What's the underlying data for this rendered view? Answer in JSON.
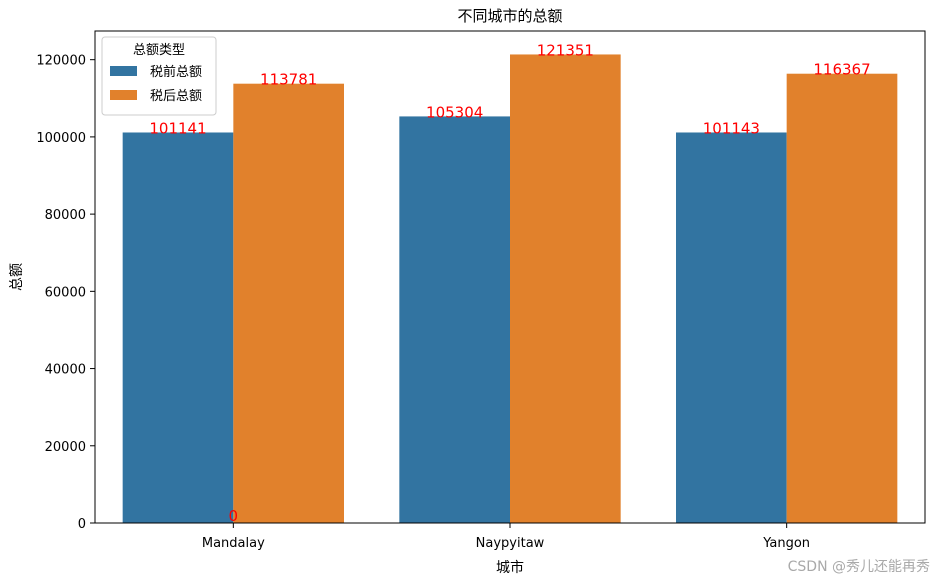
{
  "chart_data": {
    "type": "bar",
    "title": "不同城市的总额",
    "xlabel": "城市",
    "ylabel": "总额",
    "categories": [
      "Mandalay",
      "Naypyitaw",
      "Yangon"
    ],
    "series": [
      {
        "name": "税前总额",
        "color": "#3274a1",
        "values": [
          101141,
          105304,
          101143
        ]
      },
      {
        "name": "税后总额",
        "color": "#e1812c",
        "values": [
          113781,
          121351,
          116367
        ]
      }
    ],
    "ylim": [
      0,
      127427
    ],
    "yticks": [
      0,
      20000,
      40000,
      60000,
      80000,
      100000,
      120000
    ],
    "legend": {
      "title": "总额类型",
      "placement": "top-left"
    },
    "grid": false,
    "data_label_color": "#ff0000",
    "extra_labels": [
      {
        "text": "0",
        "category": "Mandalay",
        "y": 0
      }
    ]
  },
  "watermark": "CSDN @秀儿还能再秀"
}
